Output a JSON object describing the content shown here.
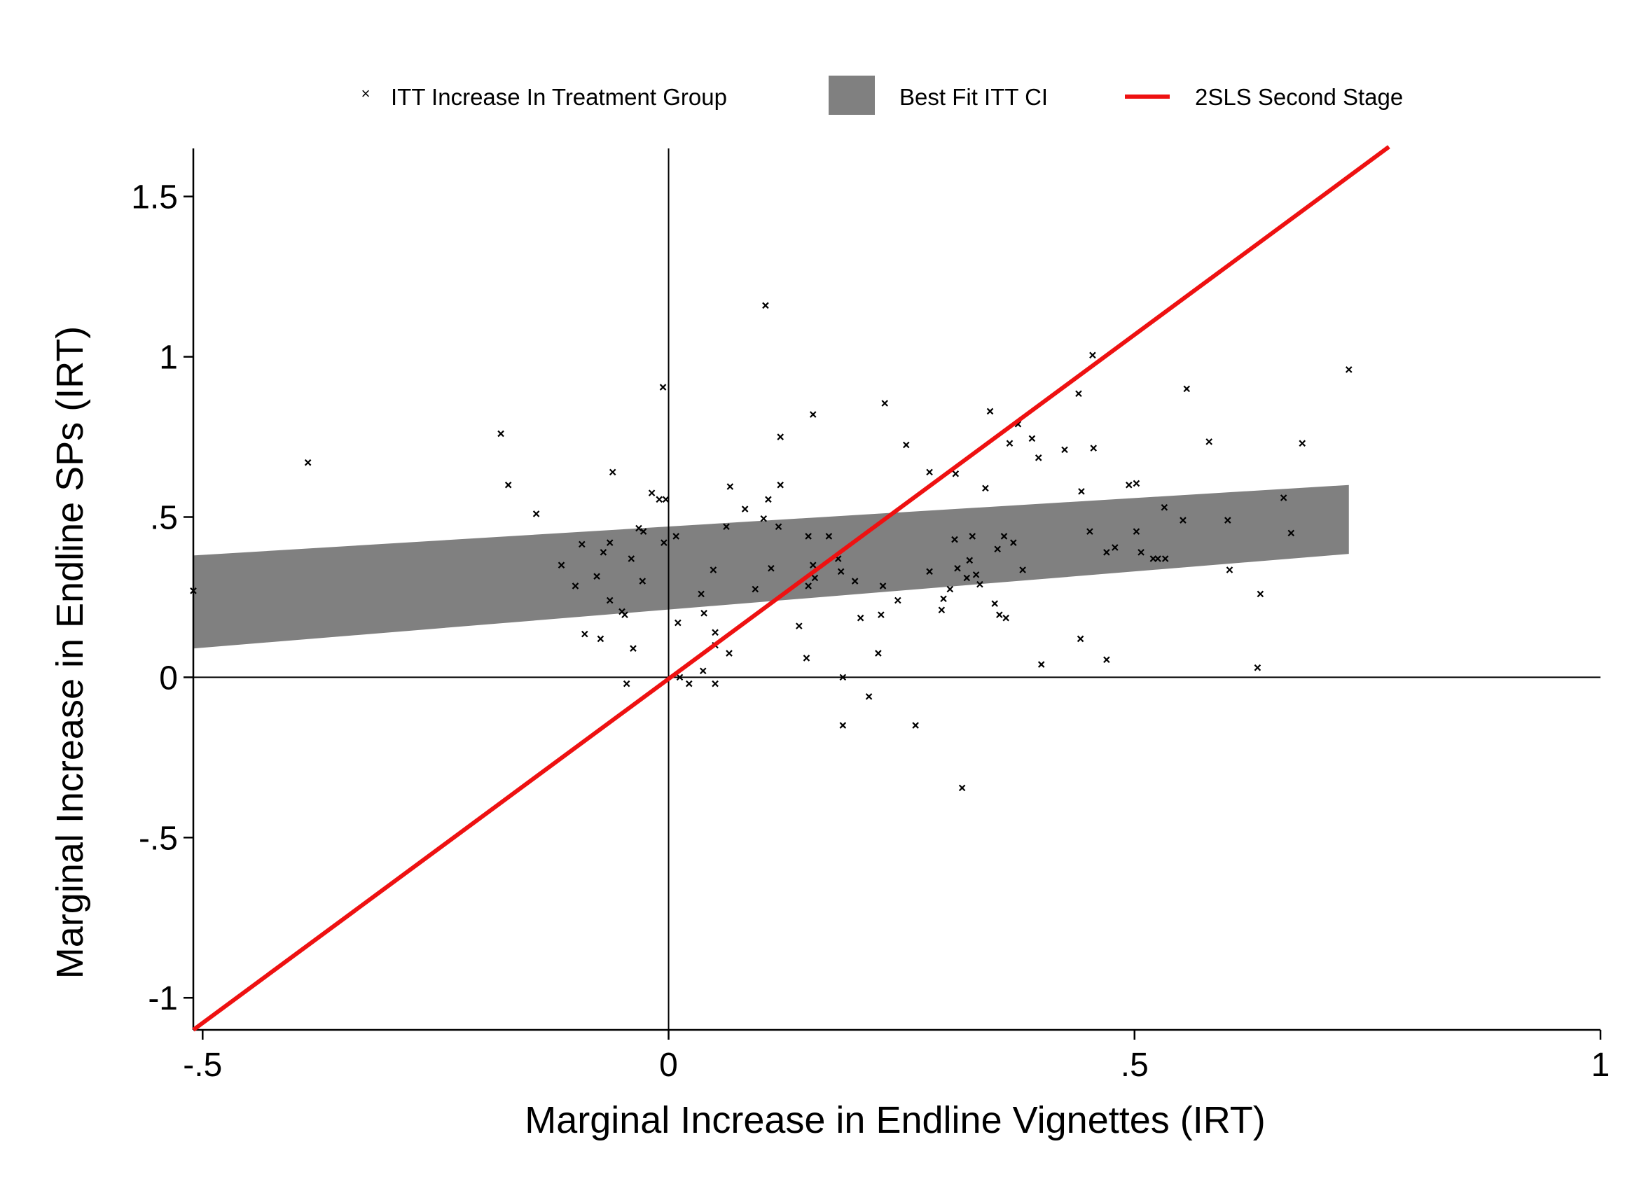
{
  "chart_data": {
    "type": "scatter",
    "xlabel": "Marginal Increase in Endline Vignettes (IRT)",
    "ylabel": "Marginal Increase in Endline SPs (IRT)",
    "xlim": [
      -0.51,
      1.0
    ],
    "ylim": [
      -1.1,
      1.65
    ],
    "xticks": [
      {
        "value": -0.5,
        "label": "-.5"
      },
      {
        "value": 0,
        "label": "0"
      },
      {
        "value": 0.5,
        "label": ".5"
      },
      {
        "value": 1,
        "label": "1"
      }
    ],
    "yticks": [
      {
        "value": -1,
        "label": "-1"
      },
      {
        "value": -0.5,
        "label": "-.5"
      },
      {
        "value": 0,
        "label": "0"
      },
      {
        "value": 0.5,
        "label": ".5"
      },
      {
        "value": 1,
        "label": "1"
      },
      {
        "value": 1.5,
        "label": "1.5"
      }
    ],
    "reference_lines": {
      "x": 0,
      "y": 0
    },
    "grid": false,
    "legend": {
      "position": "top",
      "entries": [
        {
          "label": "ITT Increase In Treatment Group",
          "symbol": "x-marker"
        },
        {
          "label": "Best Fit ITT CI",
          "symbol": "band"
        },
        {
          "label": "2SLS Second Stage",
          "symbol": "line"
        }
      ]
    },
    "colors": {
      "points": "#000000",
      "ci_band": "#808080",
      "line": "#ee1111"
    },
    "series": [
      {
        "name": "ITT Increase In Treatment Group",
        "type": "scatter",
        "points": [
          [
            -0.51,
            0.27
          ],
          [
            -0.387,
            0.67
          ],
          [
            -0.18,
            0.76
          ],
          [
            -0.172,
            0.6
          ],
          [
            -0.142,
            0.51
          ],
          [
            -0.115,
            0.35
          ],
          [
            -0.1,
            0.285
          ],
          [
            -0.093,
            0.415
          ],
          [
            -0.09,
            0.135
          ],
          [
            -0.077,
            0.315
          ],
          [
            -0.073,
            0.12
          ],
          [
            -0.07,
            0.39
          ],
          [
            -0.063,
            0.42
          ],
          [
            -0.063,
            0.24
          ],
          [
            -0.06,
            0.64
          ],
          [
            -0.05,
            0.205
          ],
          [
            -0.047,
            0.195
          ],
          [
            -0.045,
            -0.02
          ],
          [
            -0.04,
            0.37
          ],
          [
            -0.038,
            0.09
          ],
          [
            -0.032,
            0.465
          ],
          [
            -0.028,
            0.3
          ],
          [
            -0.027,
            0.455
          ],
          [
            -0.018,
            0.575
          ],
          [
            -0.01,
            0.555
          ],
          [
            -0.006,
            0.905
          ],
          [
            -0.005,
            0.42
          ],
          [
            -0.003,
            0.555
          ],
          [
            0.008,
            0.44
          ],
          [
            0.01,
            0.17
          ],
          [
            0.012,
            0.0
          ],
          [
            0.022,
            -0.02
          ],
          [
            0.035,
            0.26
          ],
          [
            0.037,
            0.02
          ],
          [
            0.038,
            0.2
          ],
          [
            0.048,
            0.335
          ],
          [
            0.05,
            0.14
          ],
          [
            0.05,
            0.1
          ],
          [
            0.05,
            -0.02
          ],
          [
            0.062,
            0.47
          ],
          [
            0.065,
            0.075
          ],
          [
            0.066,
            0.595
          ],
          [
            0.082,
            0.525
          ],
          [
            0.093,
            0.275
          ],
          [
            0.102,
            0.495
          ],
          [
            0.104,
            1.16
          ],
          [
            0.107,
            0.555
          ],
          [
            0.11,
            0.34
          ],
          [
            0.118,
            0.47
          ],
          [
            0.12,
            0.6
          ],
          [
            0.12,
            0.75
          ],
          [
            0.14,
            0.16
          ],
          [
            0.148,
            0.06
          ],
          [
            0.15,
            0.44
          ],
          [
            0.15,
            0.285
          ],
          [
            0.155,
            0.35
          ],
          [
            0.155,
            0.82
          ],
          [
            0.157,
            0.31
          ],
          [
            0.172,
            0.44
          ],
          [
            0.182,
            0.37
          ],
          [
            0.185,
            0.33
          ],
          [
            0.187,
            0.0
          ],
          [
            0.187,
            -0.15
          ],
          [
            0.2,
            0.3
          ],
          [
            0.206,
            0.185
          ],
          [
            0.215,
            -0.06
          ],
          [
            0.225,
            0.075
          ],
          [
            0.228,
            0.195
          ],
          [
            0.23,
            0.285
          ],
          [
            0.232,
            0.855
          ],
          [
            0.246,
            0.24
          ],
          [
            0.255,
            0.725
          ],
          [
            0.265,
            -0.15
          ],
          [
            0.28,
            0.33
          ],
          [
            0.28,
            0.64
          ],
          [
            0.293,
            0.21
          ],
          [
            0.295,
            0.245
          ],
          [
            0.302,
            0.275
          ],
          [
            0.307,
            0.43
          ],
          [
            0.308,
            0.635
          ],
          [
            0.31,
            0.34
          ],
          [
            0.315,
            -0.345
          ],
          [
            0.32,
            0.31
          ],
          [
            0.323,
            0.365
          ],
          [
            0.326,
            0.44
          ],
          [
            0.33,
            0.32
          ],
          [
            0.334,
            0.29
          ],
          [
            0.34,
            0.59
          ],
          [
            0.345,
            0.83
          ],
          [
            0.35,
            0.23
          ],
          [
            0.353,
            0.4
          ],
          [
            0.355,
            0.195
          ],
          [
            0.36,
            0.44
          ],
          [
            0.362,
            0.185
          ],
          [
            0.366,
            0.73
          ],
          [
            0.37,
            0.42
          ],
          [
            0.375,
            0.79
          ],
          [
            0.38,
            0.335
          ],
          [
            0.39,
            0.745
          ],
          [
            0.397,
            0.685
          ],
          [
            0.4,
            0.04
          ],
          [
            0.425,
            0.71
          ],
          [
            0.44,
            0.885
          ],
          [
            0.442,
            0.12
          ],
          [
            0.443,
            0.58
          ],
          [
            0.452,
            0.455
          ],
          [
            0.455,
            1.005
          ],
          [
            0.456,
            0.715
          ],
          [
            0.47,
            0.055
          ],
          [
            0.47,
            0.39
          ],
          [
            0.479,
            0.405
          ],
          [
            0.494,
            0.6
          ],
          [
            0.502,
            0.605
          ],
          [
            0.502,
            0.455
          ],
          [
            0.507,
            0.39
          ],
          [
            0.52,
            0.37
          ],
          [
            0.525,
            0.37
          ],
          [
            0.532,
            0.53
          ],
          [
            0.533,
            0.37
          ],
          [
            0.552,
            0.49
          ],
          [
            0.556,
            0.9
          ],
          [
            0.58,
            0.735
          ],
          [
            0.6,
            0.49
          ],
          [
            0.602,
            0.335
          ],
          [
            0.632,
            0.03
          ],
          [
            0.635,
            0.26
          ],
          [
            0.66,
            0.56
          ],
          [
            0.668,
            0.45
          ],
          [
            0.68,
            0.73
          ],
          [
            0.73,
            0.96
          ]
        ]
      },
      {
        "name": "Best Fit ITT CI",
        "type": "area",
        "x": [
          -0.51,
          0.73
        ],
        "lower": [
          0.09,
          0.385
        ],
        "upper": [
          0.38,
          0.6
        ]
      },
      {
        "name": "2SLS Second Stage",
        "type": "line",
        "x": [
          -0.51,
          0.773
        ],
        "y": [
          -1.1,
          1.655
        ]
      }
    ]
  }
}
